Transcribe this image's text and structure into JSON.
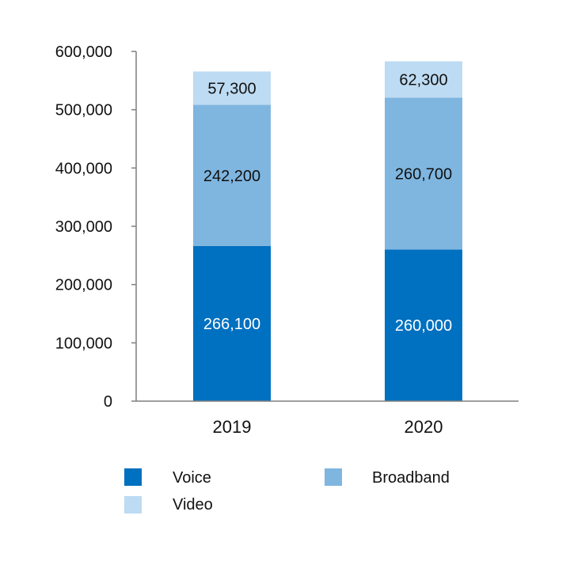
{
  "chart_data": {
    "type": "bar",
    "stacked": true,
    "categories": [
      "2019",
      "2020"
    ],
    "series": [
      {
        "name": "Voice",
        "values": [
          266100,
          260000
        ],
        "labels": [
          "266,100",
          "260,000"
        ],
        "color": "#0070c0",
        "label_color": "#ffffff"
      },
      {
        "name": "Broadband",
        "values": [
          242200,
          260700
        ],
        "labels": [
          "242,200",
          "260,700"
        ],
        "color": "#7fb6e0",
        "label_color": "#111111"
      },
      {
        "name": "Video",
        "values": [
          57300,
          62300
        ],
        "labels": [
          "57,300",
          "62,300"
        ],
        "color": "#bddbf2",
        "label_color": "#111111"
      }
    ],
    "ylim": [
      0,
      600000
    ],
    "yticks": [
      0,
      100000,
      200000,
      300000,
      400000,
      500000,
      600000
    ],
    "ytick_labels": [
      "0",
      "100,000",
      "200,000",
      "300,000",
      "400,000",
      "500,000",
      "600,000"
    ],
    "grid": false,
    "legend_position": "bottom",
    "title": "",
    "xlabel": "",
    "ylabel": ""
  }
}
